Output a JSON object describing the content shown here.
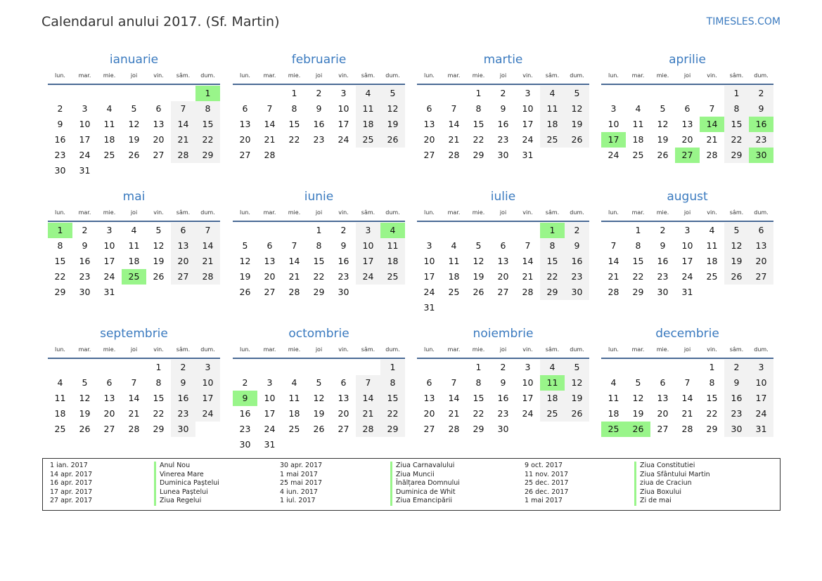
{
  "header": {
    "title": "Calendarul anului 2017. (Sf. Martin)",
    "brand": "TIMESLES.COM"
  },
  "year": 2017,
  "weekdays": [
    "lun.",
    "mar.",
    "mie.",
    "joi",
    "vin.",
    "sâm.",
    "dum."
  ],
  "colors": {
    "accent": "#3a7abf",
    "holiday": "#99f58a",
    "weekend": "#f2f2f2"
  },
  "months": [
    {
      "name": "ianuarie",
      "holidays": [
        1
      ]
    },
    {
      "name": "februarie",
      "holidays": []
    },
    {
      "name": "martie",
      "holidays": []
    },
    {
      "name": "aprilie",
      "holidays": [
        14,
        16,
        17,
        27,
        30
      ]
    },
    {
      "name": "mai",
      "holidays": [
        1,
        25
      ]
    },
    {
      "name": "iunie",
      "holidays": [
        4
      ]
    },
    {
      "name": "iulie",
      "holidays": [
        1
      ]
    },
    {
      "name": "august",
      "holidays": []
    },
    {
      "name": "septembrie",
      "holidays": []
    },
    {
      "name": "octombrie",
      "holidays": [
        9
      ]
    },
    {
      "name": "noiembrie",
      "holidays": [
        11
      ]
    },
    {
      "name": "decembrie",
      "holidays": [
        25,
        26
      ]
    }
  ],
  "legend": [
    {
      "date": "1 ian. 2017",
      "name": "Anul Nou"
    },
    {
      "date": "14 apr. 2017",
      "name": "Vinerea Mare"
    },
    {
      "date": "16 apr. 2017",
      "name": "Duminica Paștelui"
    },
    {
      "date": "17 apr. 2017",
      "name": "Lunea Paștelui"
    },
    {
      "date": "27 apr. 2017",
      "name": "Ziua Regelui"
    },
    {
      "date": "30 apr. 2017",
      "name": "Ziua Carnavalului"
    },
    {
      "date": "1 mai 2017",
      "name": "Ziua Muncii"
    },
    {
      "date": "25 mai 2017",
      "name": "Înălțarea Domnului"
    },
    {
      "date": "4 iun. 2017",
      "name": "Duminica de Whit"
    },
    {
      "date": "1 iul. 2017",
      "name": "Ziua Emancipării"
    },
    {
      "date": "9 oct. 2017",
      "name": "Ziua Constitutiei"
    },
    {
      "date": "11 nov. 2017",
      "name": "Ziua Sfântului Martin"
    },
    {
      "date": "25 dec. 2017",
      "name": "ziua de Craciun"
    },
    {
      "date": "26 dec. 2017",
      "name": "Ziua Boxului"
    },
    {
      "date": "1 mai 2017",
      "name": "Zi de mai"
    }
  ]
}
